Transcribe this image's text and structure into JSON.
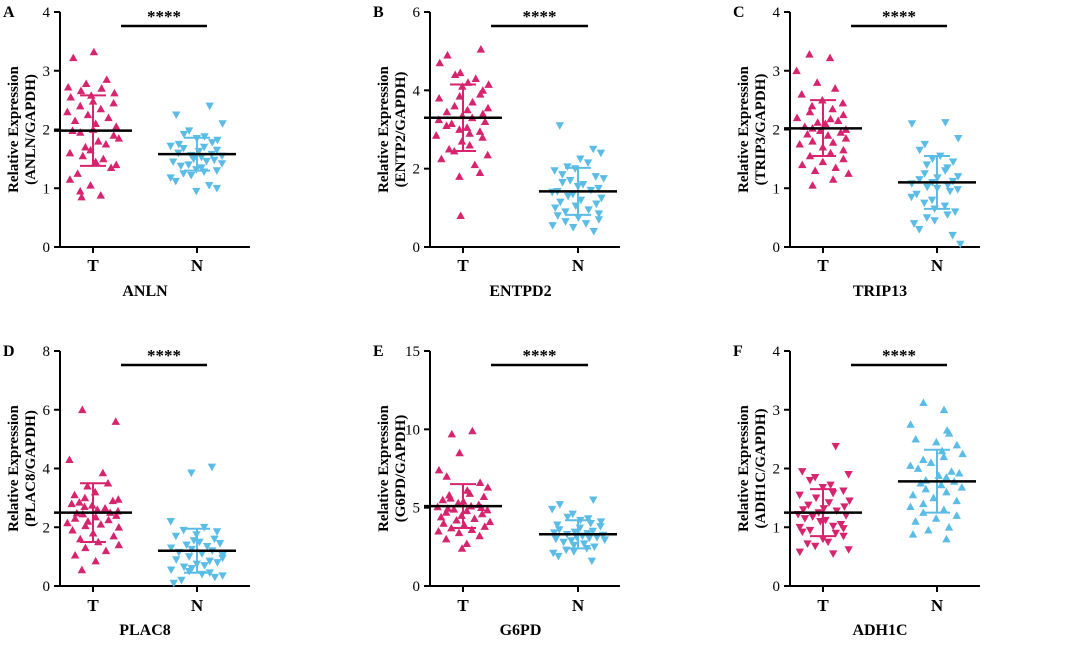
{
  "colors": {
    "tumor": "#d6246e",
    "normal": "#5bbde6",
    "axis": "#000000"
  },
  "chart_data": [
    {
      "type": "scatter",
      "panel_letter": "A",
      "title": "ANLN",
      "ylabel_line1": "Relative Expression",
      "ylabel_line2": "(ANLN/GAPDH)",
      "categories": [
        "T",
        "N"
      ],
      "ylim": [
        0,
        4
      ],
      "yticks": [
        "0",
        "1",
        "2",
        "3",
        "4"
      ],
      "significance": "****",
      "groups": [
        {
          "name": "T",
          "mean": 1.98,
          "sd_low": 1.38,
          "sd_high": 2.58,
          "marker": "triangle-up",
          "points": [
            3.32,
            3.22,
            2.85,
            2.78,
            2.72,
            2.7,
            2.66,
            2.62,
            2.58,
            2.55,
            2.48,
            2.45,
            2.4,
            2.35,
            2.3,
            2.25,
            2.2,
            2.15,
            2.1,
            2.05,
            2.0,
            1.98,
            1.95,
            1.9,
            1.85,
            1.8,
            1.75,
            1.7,
            1.65,
            1.6,
            1.55,
            1.5,
            1.45,
            1.4,
            1.35,
            1.25,
            1.15,
            1.05,
            0.95,
            0.88,
            0.85
          ]
        },
        {
          "name": "N",
          "mean": 1.58,
          "sd_low": 1.3,
          "sd_high": 1.86,
          "marker": "triangle-down",
          "points": [
            2.4,
            2.25,
            2.1,
            1.98,
            1.92,
            1.88,
            1.85,
            1.82,
            1.78,
            1.75,
            1.72,
            1.7,
            1.68,
            1.65,
            1.63,
            1.6,
            1.58,
            1.56,
            1.55,
            1.53,
            1.5,
            1.48,
            1.46,
            1.45,
            1.42,
            1.4,
            1.38,
            1.35,
            1.32,
            1.3,
            1.28,
            1.25,
            1.22,
            1.18,
            1.12,
            1.05,
            1.0,
            0.95
          ]
        }
      ]
    },
    {
      "type": "scatter",
      "panel_letter": "B",
      "title": "ENTPD2",
      "ylabel_line1": "Relative Expression",
      "ylabel_line2": "(ENTP2/GAPDH)",
      "categories": [
        "T",
        "N"
      ],
      "ylim": [
        0,
        6
      ],
      "yticks": [
        "0",
        "2",
        "4",
        "6"
      ],
      "significance": "****",
      "groups": [
        {
          "name": "T",
          "mean": 3.3,
          "sd_low": 2.45,
          "sd_high": 4.15,
          "marker": "triangle-up",
          "points": [
            5.05,
            4.9,
            4.7,
            4.45,
            4.4,
            4.3,
            4.2,
            4.15,
            4.1,
            4.0,
            3.9,
            3.85,
            3.8,
            3.7,
            3.6,
            3.55,
            3.5,
            3.45,
            3.4,
            3.35,
            3.3,
            3.25,
            3.2,
            3.15,
            3.1,
            3.05,
            3.0,
            2.95,
            2.9,
            2.85,
            2.8,
            2.7,
            2.6,
            2.5,
            2.45,
            2.35,
            2.25,
            2.1,
            1.9,
            1.8,
            0.8
          ]
        },
        {
          "name": "N",
          "mean": 1.42,
          "sd_low": 0.82,
          "sd_high": 2.02,
          "marker": "triangle-down",
          "points": [
            3.1,
            2.5,
            2.4,
            2.25,
            2.15,
            2.05,
            2.0,
            1.95,
            1.85,
            1.8,
            1.75,
            1.7,
            1.65,
            1.6,
            1.55,
            1.5,
            1.45,
            1.42,
            1.4,
            1.35,
            1.3,
            1.25,
            1.2,
            1.15,
            1.1,
            1.05,
            1.0,
            0.95,
            0.9,
            0.85,
            0.8,
            0.75,
            0.7,
            0.65,
            0.6,
            0.55,
            0.5,
            0.4
          ]
        }
      ]
    },
    {
      "type": "scatter",
      "panel_letter": "C",
      "title": "TRIP13",
      "ylabel_line1": "Relative Expression",
      "ylabel_line2": "(TRIP3/GAPDH)",
      "categories": [
        "T",
        "N"
      ],
      "ylim": [
        0,
        4
      ],
      "yticks": [
        "0",
        "1",
        "2",
        "3",
        "4"
      ],
      "significance": "****",
      "groups": [
        {
          "name": "T",
          "mean": 2.02,
          "sd_low": 1.55,
          "sd_high": 2.5,
          "marker": "triangle-up",
          "points": [
            3.28,
            3.22,
            3.0,
            2.8,
            2.7,
            2.6,
            2.5,
            2.45,
            2.4,
            2.35,
            2.3,
            2.25,
            2.2,
            2.18,
            2.15,
            2.12,
            2.1,
            2.05,
            2.02,
            2.0,
            1.98,
            1.95,
            1.92,
            1.9,
            1.85,
            1.8,
            1.78,
            1.75,
            1.7,
            1.65,
            1.6,
            1.55,
            1.5,
            1.45,
            1.4,
            1.35,
            1.3,
            1.25,
            1.15,
            1.05
          ]
        },
        {
          "name": "N",
          "mean": 1.1,
          "sd_low": 0.65,
          "sd_high": 1.55,
          "marker": "triangle-down",
          "points": [
            2.12,
            2.1,
            1.85,
            1.75,
            1.65,
            1.55,
            1.5,
            1.45,
            1.4,
            1.35,
            1.3,
            1.25,
            1.2,
            1.18,
            1.15,
            1.12,
            1.1,
            1.08,
            1.05,
            1.02,
            1.0,
            0.98,
            0.95,
            0.9,
            0.85,
            0.8,
            0.75,
            0.7,
            0.65,
            0.6,
            0.55,
            0.5,
            0.45,
            0.4,
            0.3,
            0.2,
            0.05
          ]
        }
      ]
    },
    {
      "type": "scatter",
      "panel_letter": "D",
      "title": "PLAC8",
      "ylabel_line1": "Relative Expression",
      "ylabel_line2": "(PLAC8/GAPDH)",
      "categories": [
        "T",
        "N"
      ],
      "ylim": [
        0,
        8
      ],
      "yticks": [
        "0",
        "2",
        "4",
        "6",
        "8"
      ],
      "significance": "****",
      "groups": [
        {
          "name": "T",
          "mean": 2.5,
          "sd_low": 1.5,
          "sd_high": 3.5,
          "marker": "triangle-up",
          "points": [
            6.0,
            5.6,
            4.3,
            3.85,
            3.5,
            3.4,
            3.2,
            3.1,
            3.0,
            2.95,
            2.9,
            2.85,
            2.8,
            2.75,
            2.7,
            2.65,
            2.6,
            2.55,
            2.5,
            2.48,
            2.45,
            2.4,
            2.35,
            2.3,
            2.25,
            2.2,
            2.15,
            2.1,
            2.05,
            2.0,
            1.9,
            1.8,
            1.7,
            1.6,
            1.5,
            1.4,
            1.3,
            1.2,
            1.05,
            0.85,
            0.55
          ]
        },
        {
          "name": "N",
          "mean": 1.2,
          "sd_low": 0.45,
          "sd_high": 1.95,
          "marker": "triangle-down",
          "points": [
            4.05,
            3.85,
            2.2,
            2.0,
            1.9,
            1.85,
            1.75,
            1.7,
            1.6,
            1.55,
            1.5,
            1.45,
            1.4,
            1.35,
            1.3,
            1.25,
            1.2,
            1.15,
            1.1,
            1.05,
            1.0,
            0.95,
            0.9,
            0.85,
            0.8,
            0.75,
            0.7,
            0.65,
            0.6,
            0.55,
            0.5,
            0.45,
            0.4,
            0.35,
            0.3,
            0.2,
            0.1
          ]
        }
      ]
    },
    {
      "type": "scatter",
      "panel_letter": "E",
      "title": "G6PD",
      "ylabel_line1": "Relative Expression",
      "ylabel_line2": "(G6PD/GAPDH)",
      "categories": [
        "T",
        "N"
      ],
      "ylim": [
        0,
        15
      ],
      "yticks": [
        "0",
        "5",
        "10",
        "15"
      ],
      "significance": "****",
      "groups": [
        {
          "name": "T",
          "mean": 5.1,
          "sd_low": 3.7,
          "sd_high": 6.5,
          "marker": "triangle-up",
          "points": [
            9.9,
            9.7,
            8.5,
            7.4,
            7.0,
            6.6,
            6.3,
            6.1,
            5.9,
            5.8,
            5.7,
            5.6,
            5.5,
            5.4,
            5.3,
            5.2,
            5.1,
            5.05,
            5.0,
            4.95,
            4.9,
            4.85,
            4.8,
            4.7,
            4.6,
            4.5,
            4.4,
            4.3,
            4.2,
            4.1,
            4.0,
            3.9,
            3.8,
            3.7,
            3.6,
            3.5,
            3.4,
            3.2,
            3.0,
            2.7,
            2.4
          ]
        },
        {
          "name": "N",
          "mean": 3.3,
          "sd_low": 2.4,
          "sd_high": 4.2,
          "marker": "triangle-down",
          "points": [
            5.5,
            5.2,
            4.9,
            4.6,
            4.4,
            4.3,
            4.2,
            4.1,
            4.0,
            3.9,
            3.8,
            3.7,
            3.6,
            3.5,
            3.45,
            3.4,
            3.35,
            3.3,
            3.25,
            3.2,
            3.15,
            3.1,
            3.05,
            3.0,
            2.95,
            2.9,
            2.8,
            2.7,
            2.6,
            2.5,
            2.4,
            2.3,
            2.2,
            2.1,
            1.9,
            1.6
          ]
        }
      ]
    },
    {
      "type": "scatter",
      "panel_letter": "F",
      "title": "ADH1C",
      "ylabel_line1": "Relative Expression",
      "ylabel_line2": "(ADH1C/GAPDH)",
      "categories": [
        "T",
        "N"
      ],
      "ylim": [
        0,
        4
      ],
      "yticks": [
        "0",
        "1",
        "2",
        "3",
        "4"
      ],
      "significance": "****",
      "groups": [
        {
          "name": "T",
          "mean": 1.25,
          "sd_low": 0.85,
          "sd_high": 1.65,
          "marker": "triangle-down",
          "points": [
            2.38,
            1.95,
            1.9,
            1.85,
            1.8,
            1.72,
            1.68,
            1.62,
            1.58,
            1.55,
            1.5,
            1.45,
            1.42,
            1.38,
            1.35,
            1.32,
            1.3,
            1.28,
            1.25,
            1.22,
            1.2,
            1.18,
            1.15,
            1.12,
            1.1,
            1.05,
            1.02,
            1.0,
            0.98,
            0.95,
            0.92,
            0.9,
            0.85,
            0.8,
            0.75,
            0.72,
            0.68,
            0.62,
            0.58,
            0.55
          ]
        },
        {
          "name": "N",
          "mean": 1.78,
          "sd_low": 1.25,
          "sd_high": 2.32,
          "marker": "triangle-up",
          "points": [
            3.12,
            3.0,
            2.75,
            2.65,
            2.6,
            2.5,
            2.45,
            2.4,
            2.3,
            2.25,
            2.2,
            2.15,
            2.1,
            2.05,
            2.0,
            1.95,
            1.92,
            1.88,
            1.85,
            1.8,
            1.78,
            1.75,
            1.72,
            1.68,
            1.65,
            1.6,
            1.55,
            1.5,
            1.45,
            1.4,
            1.35,
            1.3,
            1.25,
            1.2,
            1.15,
            1.1,
            1.0,
            0.95,
            0.88,
            0.8
          ]
        }
      ]
    }
  ]
}
